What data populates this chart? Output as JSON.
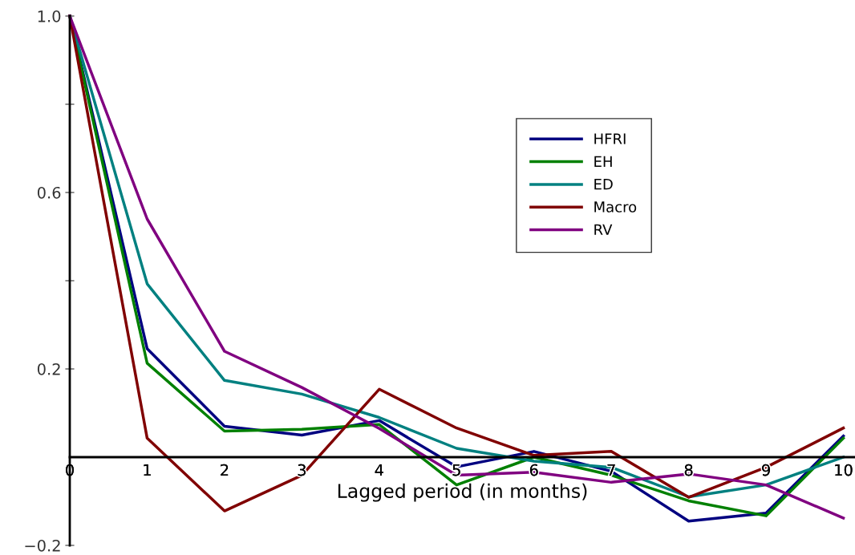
{
  "chart_data": {
    "type": "line",
    "xlabel": "Lagged period (in months)",
    "x": [
      0,
      1,
      2,
      3,
      4,
      5,
      6,
      7,
      8,
      9,
      10
    ],
    "series": [
      {
        "name": "HFRI",
        "color": "#000080",
        "values": [
          1.0,
          0.246,
          0.07,
          0.05,
          0.083,
          -0.022,
          0.013,
          -0.032,
          -0.145,
          -0.127,
          0.048
        ]
      },
      {
        "name": "EH",
        "color": "#008000",
        "values": [
          1.0,
          0.213,
          0.059,
          0.063,
          0.074,
          -0.063,
          0.0,
          -0.041,
          -0.099,
          -0.133,
          0.043
        ]
      },
      {
        "name": "ED",
        "color": "#008080",
        "values": [
          1.0,
          0.393,
          0.174,
          0.143,
          0.09,
          0.02,
          -0.009,
          -0.023,
          -0.09,
          -0.063,
          0.0
        ]
      },
      {
        "name": "Macro",
        "color": "#800000",
        "values": [
          1.0,
          0.043,
          -0.122,
          -0.041,
          0.154,
          0.066,
          0.004,
          0.013,
          -0.091,
          -0.023,
          0.066
        ]
      },
      {
        "name": "RV",
        "color": "#800080",
        "values": [
          1.0,
          0.54,
          0.24,
          0.158,
          0.065,
          -0.041,
          -0.034,
          -0.057,
          -0.038,
          -0.063,
          -0.138
        ]
      }
    ],
    "xlim": [
      0,
      10.15
    ],
    "ylim": [
      -0.2,
      1.0
    ],
    "xticks": [
      0,
      1,
      2,
      3,
      4,
      5,
      6,
      7,
      8,
      9,
      10
    ],
    "yticks": [
      {
        "value": -0.2,
        "label": "−0.2"
      },
      0.2,
      {
        "value": 0.4,
        "label": null
      },
      0.6,
      {
        "value": 0.8,
        "label": null
      },
      {
        "value": 1.0,
        "label": "1.0"
      }
    ],
    "grid": false,
    "legend": "top right",
    "marker": "none",
    "line_style": "solid"
  }
}
